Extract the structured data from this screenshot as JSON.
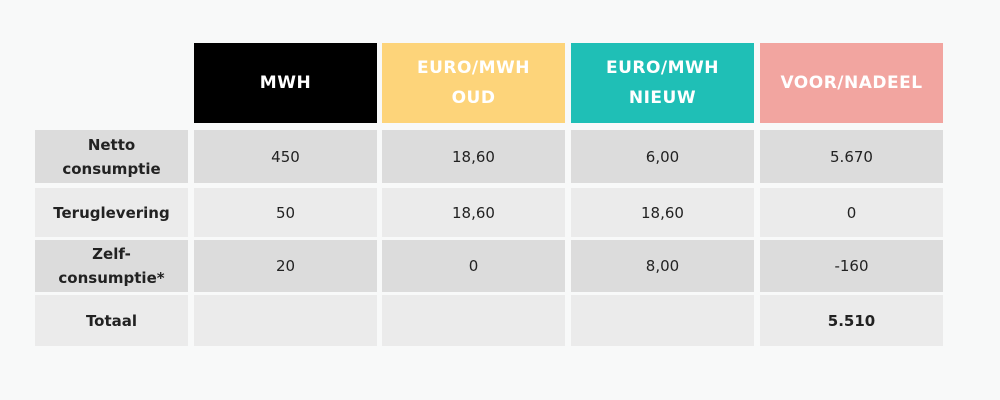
{
  "table": {
    "header": [
      {
        "lines": [
          "MWH"
        ]
      },
      {
        "lines": [
          "EURO/MWH",
          "OUD"
        ]
      },
      {
        "lines": [
          "EURO/MWH",
          "NIEUW"
        ]
      },
      {
        "lines": [
          "VOOR/NADEEL"
        ]
      }
    ],
    "rows": [
      {
        "label": [
          "Netto",
          "consumptie"
        ],
        "cells": [
          "450",
          "18,60",
          "6,00",
          "5.670"
        ]
      },
      {
        "label": [
          "Teruglevering"
        ],
        "cells": [
          "50",
          "18,60",
          "18,60",
          "0"
        ]
      },
      {
        "label": [
          "Zelf-",
          "consumptie*"
        ],
        "cells": [
          "20",
          "0",
          "8,00",
          "-160"
        ]
      },
      {
        "label": [
          "Totaal"
        ],
        "cells": [
          null,
          null,
          null,
          "5.510"
        ]
      }
    ]
  }
}
